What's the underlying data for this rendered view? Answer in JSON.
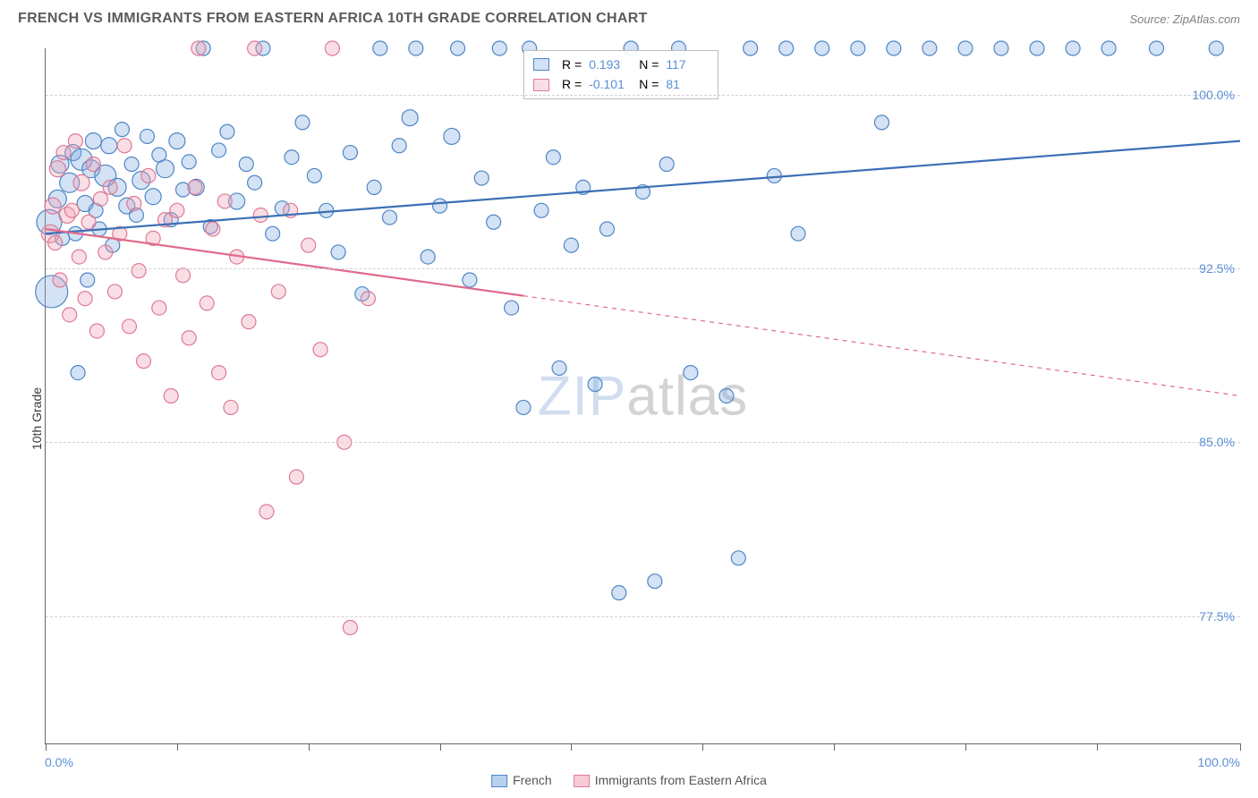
{
  "title": "FRENCH VS IMMIGRANTS FROM EASTERN AFRICA 10TH GRADE CORRELATION CHART",
  "source": "Source: ZipAtlas.com",
  "ylabel": "10th Grade",
  "watermark": {
    "pre": "ZIP",
    "post": "atlas"
  },
  "chart": {
    "type": "scatter",
    "background_color": "#ffffff",
    "grid_color": "#d0d0d0",
    "axis_color": "#666666",
    "label_color": "#5a8fd6",
    "xlim": [
      0,
      100
    ],
    "ylim": [
      72,
      102
    ],
    "xticks": [
      0,
      11,
      22,
      33,
      44,
      55,
      66,
      77,
      88,
      100
    ],
    "xtick_labels": {
      "0": "0.0%",
      "100": "100.0%"
    },
    "yticks": [
      77.5,
      85.0,
      92.5,
      100.0
    ],
    "ytick_format": "%.1f%%",
    "marker_radius": 8,
    "marker_stroke_width": 1.2,
    "trend_line_width": 2.2,
    "series": [
      {
        "name": "French",
        "fill": "rgba(128,172,224,0.35)",
        "stroke": "#4f86c6",
        "line_color": "#3b6fb5",
        "line_dash": "none",
        "R": "0.193",
        "N": "117",
        "trend": {
          "x1": 0,
          "y1": 94.0,
          "x2": 100,
          "y2": 98.0
        },
        "points": [
          [
            0.3,
            94.5,
            14
          ],
          [
            0.5,
            91.5,
            18
          ],
          [
            1,
            95.5,
            10
          ],
          [
            1.2,
            97.0,
            10
          ],
          [
            1.4,
            93.8,
            8
          ],
          [
            2,
            96.2,
            11
          ],
          [
            2.3,
            97.5,
            9
          ],
          [
            2.5,
            94.0,
            8
          ],
          [
            2.7,
            88.0,
            8
          ],
          [
            3,
            97.2,
            12
          ],
          [
            3.3,
            95.3,
            9
          ],
          [
            3.5,
            92.0,
            8
          ],
          [
            3.8,
            96.8,
            10
          ],
          [
            4,
            98.0,
            9
          ],
          [
            4.2,
            95.0,
            8
          ],
          [
            4.5,
            94.2,
            8
          ],
          [
            5,
            96.5,
            12
          ],
          [
            5.3,
            97.8,
            9
          ],
          [
            5.6,
            93.5,
            8
          ],
          [
            6,
            96.0,
            10
          ],
          [
            6.4,
            98.5,
            8
          ],
          [
            6.8,
            95.2,
            9
          ],
          [
            7.2,
            97.0,
            8
          ],
          [
            7.6,
            94.8,
            8
          ],
          [
            8,
            96.3,
            10
          ],
          [
            8.5,
            98.2,
            8
          ],
          [
            9,
            95.6,
            9
          ],
          [
            9.5,
            97.4,
            8
          ],
          [
            10,
            96.8,
            10
          ],
          [
            10.5,
            94.6,
            8
          ],
          [
            11,
            98.0,
            9
          ],
          [
            11.5,
            95.9,
            8
          ],
          [
            12,
            97.1,
            8
          ],
          [
            12.6,
            96.0,
            9
          ],
          [
            13.2,
            102,
            8
          ],
          [
            13.8,
            94.3,
            8
          ],
          [
            14.5,
            97.6,
            8
          ],
          [
            15.2,
            98.4,
            8
          ],
          [
            16,
            95.4,
            9
          ],
          [
            16.8,
            97.0,
            8
          ],
          [
            17.5,
            96.2,
            8
          ],
          [
            18.2,
            102,
            8
          ],
          [
            19,
            94.0,
            8
          ],
          [
            19.8,
            95.1,
            8
          ],
          [
            20.6,
            97.3,
            8
          ],
          [
            21.5,
            98.8,
            8
          ],
          [
            22.5,
            96.5,
            8
          ],
          [
            23.5,
            95.0,
            8
          ],
          [
            24.5,
            93.2,
            8
          ],
          [
            25.5,
            97.5,
            8
          ],
          [
            26.5,
            91.4,
            8
          ],
          [
            27.5,
            96.0,
            8
          ],
          [
            28,
            102,
            8
          ],
          [
            28.8,
            94.7,
            8
          ],
          [
            29.6,
            97.8,
            8
          ],
          [
            30.5,
            99.0,
            9
          ],
          [
            31,
            102,
            8
          ],
          [
            32,
            93.0,
            8
          ],
          [
            33,
            95.2,
            8
          ],
          [
            34,
            98.2,
            9
          ],
          [
            34.5,
            102,
            8
          ],
          [
            35.5,
            92.0,
            8
          ],
          [
            36.5,
            96.4,
            8
          ],
          [
            37.5,
            94.5,
            8
          ],
          [
            38,
            102,
            8
          ],
          [
            39,
            90.8,
            8
          ],
          [
            40,
            86.5,
            8
          ],
          [
            40.5,
            102,
            8
          ],
          [
            41.5,
            95.0,
            8
          ],
          [
            42.5,
            97.3,
            8
          ],
          [
            43,
            88.2,
            8
          ],
          [
            44,
            93.5,
            8
          ],
          [
            45,
            96.0,
            8
          ],
          [
            46,
            87.5,
            8
          ],
          [
            47,
            94.2,
            8
          ],
          [
            48,
            78.5,
            8
          ],
          [
            49,
            102,
            8
          ],
          [
            50,
            95.8,
            8
          ],
          [
            51,
            79.0,
            8
          ],
          [
            52,
            97.0,
            8
          ],
          [
            53,
            102,
            8
          ],
          [
            54,
            88.0,
            8
          ],
          [
            57,
            87.0,
            8
          ],
          [
            58,
            80.0,
            8
          ],
          [
            59,
            102,
            8
          ],
          [
            61,
            96.5,
            8
          ],
          [
            62,
            102,
            8
          ],
          [
            63,
            94.0,
            8
          ],
          [
            65,
            102,
            8
          ],
          [
            68,
            102,
            8
          ],
          [
            70,
            98.8,
            8
          ],
          [
            71,
            102,
            8
          ],
          [
            74,
            102,
            8
          ],
          [
            77,
            102,
            8
          ],
          [
            80,
            102,
            8
          ],
          [
            83,
            102,
            8
          ],
          [
            86,
            102,
            8
          ],
          [
            89,
            102,
            8
          ],
          [
            93,
            102,
            8
          ],
          [
            98,
            102,
            8
          ]
        ]
      },
      {
        "name": "Immigrants from Eastern Africa",
        "fill": "rgba(240,160,180,0.35)",
        "stroke": "#de7a96",
        "line_color": "#e06b8b",
        "line_dash": "solid-then-dash",
        "dash_split_x": 40,
        "R": "-0.101",
        "N": "81",
        "trend": {
          "x1": 0,
          "y1": 94.2,
          "x2": 100,
          "y2": 87.0
        },
        "points": [
          [
            0.4,
            94.0,
            10
          ],
          [
            0.6,
            95.2,
            9
          ],
          [
            0.8,
            93.6,
            8
          ],
          [
            1,
            96.8,
            9
          ],
          [
            1.2,
            92.0,
            8
          ],
          [
            1.5,
            97.5,
            8
          ],
          [
            1.8,
            94.8,
            9
          ],
          [
            2,
            90.5,
            8
          ],
          [
            2.2,
            95.0,
            8
          ],
          [
            2.5,
            98.0,
            8
          ],
          [
            2.8,
            93.0,
            8
          ],
          [
            3,
            96.2,
            9
          ],
          [
            3.3,
            91.2,
            8
          ],
          [
            3.6,
            94.5,
            8
          ],
          [
            4,
            97.0,
            8
          ],
          [
            4.3,
            89.8,
            8
          ],
          [
            4.6,
            95.5,
            8
          ],
          [
            5,
            93.2,
            8
          ],
          [
            5.4,
            96.0,
            8
          ],
          [
            5.8,
            91.5,
            8
          ],
          [
            6.2,
            94.0,
            8
          ],
          [
            6.6,
            97.8,
            8
          ],
          [
            7,
            90.0,
            8
          ],
          [
            7.4,
            95.3,
            8
          ],
          [
            7.8,
            92.4,
            8
          ],
          [
            8.2,
            88.5,
            8
          ],
          [
            8.6,
            96.5,
            8
          ],
          [
            9,
            93.8,
            8
          ],
          [
            9.5,
            90.8,
            8
          ],
          [
            10,
            94.6,
            8
          ],
          [
            10.5,
            87.0,
            8
          ],
          [
            11,
            95.0,
            8
          ],
          [
            11.5,
            92.2,
            8
          ],
          [
            12,
            89.5,
            8
          ],
          [
            12.5,
            96.0,
            8
          ],
          [
            12.8,
            102,
            8
          ],
          [
            13.5,
            91.0,
            8
          ],
          [
            14,
            94.2,
            8
          ],
          [
            14.5,
            88.0,
            8
          ],
          [
            15,
            95.4,
            8
          ],
          [
            15.5,
            86.5,
            8
          ],
          [
            16,
            93.0,
            8
          ],
          [
            17,
            90.2,
            8
          ],
          [
            17.5,
            102,
            8
          ],
          [
            18,
            94.8,
            8
          ],
          [
            18.5,
            82.0,
            8
          ],
          [
            19.5,
            91.5,
            8
          ],
          [
            20.5,
            95.0,
            8
          ],
          [
            21,
            83.5,
            8
          ],
          [
            22,
            93.5,
            8
          ],
          [
            23,
            89.0,
            8
          ],
          [
            24,
            102,
            8
          ],
          [
            25,
            85.0,
            8
          ],
          [
            25.5,
            77.0,
            8
          ],
          [
            27,
            91.2,
            8
          ]
        ]
      }
    ]
  },
  "bottom_legend": [
    {
      "label": "French",
      "fill": "rgba(128,172,224,0.55)",
      "stroke": "#4f86c6"
    },
    {
      "label": "Immigrants from Eastern Africa",
      "fill": "rgba(240,160,180,0.55)",
      "stroke": "#de7a96"
    }
  ],
  "stats_labels": {
    "R": "R =",
    "N": "N ="
  }
}
